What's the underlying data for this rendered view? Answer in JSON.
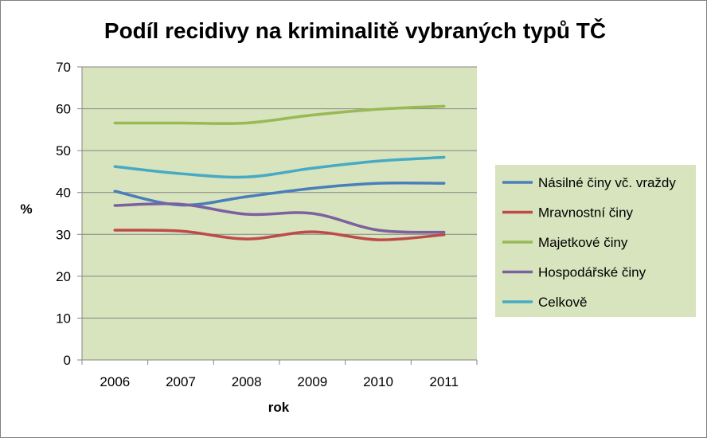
{
  "chart_data": {
    "type": "line",
    "title": "Podíl recidivy na kriminalitě vybraných typů TČ",
    "xlabel": "rok",
    "ylabel": "%",
    "categories": [
      "2006",
      "2007",
      "2008",
      "2009",
      "2010",
      "2011"
    ],
    "ylim": [
      0,
      70
    ],
    "yticks": [
      0,
      10,
      20,
      30,
      40,
      50,
      60,
      70
    ],
    "grid": true,
    "legend_position": "right",
    "plot_background": "#D7E4BD",
    "series": [
      {
        "name": "Násilné činy vč. vraždy",
        "color": "#4A7EBB",
        "values": [
          40.3,
          37.0,
          39.0,
          41.0,
          42.2,
          42.2
        ]
      },
      {
        "name": "Mravnostní činy",
        "color": "#BE4B48",
        "values": [
          31.0,
          30.8,
          28.9,
          30.6,
          28.7,
          29.9
        ]
      },
      {
        "name": "Majetkové činy",
        "color": "#98B954",
        "values": [
          56.6,
          56.6,
          56.6,
          58.5,
          59.9,
          60.6
        ]
      },
      {
        "name": "Hospodářské činy",
        "color": "#7D60A0",
        "values": [
          36.9,
          37.2,
          34.8,
          35.0,
          31.0,
          30.5
        ]
      },
      {
        "name": "Celkově",
        "color": "#46AAC5",
        "values": [
          46.2,
          44.5,
          43.7,
          45.8,
          47.5,
          48.4
        ]
      }
    ]
  }
}
